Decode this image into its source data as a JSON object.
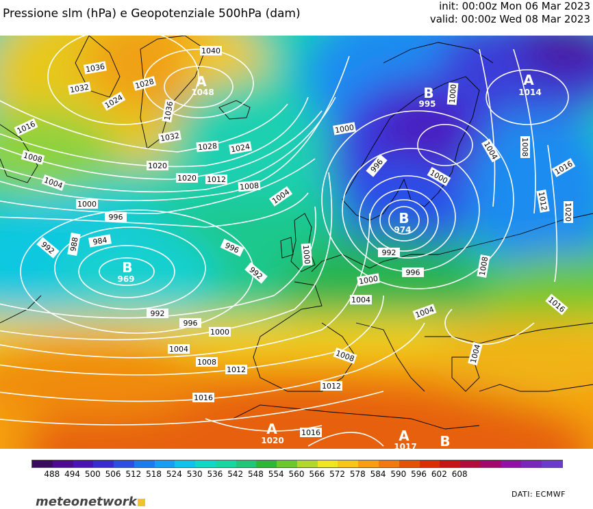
{
  "header": {
    "title": "Pressione slm (hPa) e Geopotenziale 500hPa (dam)",
    "init": "init: 00:00z Mon 06 Mar 2023",
    "valid": "valid: 00:00z Wed 08 Mar 2023"
  },
  "map": {
    "isobar_labels": [
      "1040",
      "1036",
      "1032",
      "1028",
      "1024",
      "1016",
      "1008",
      "1004",
      "1000",
      "996",
      "992",
      "988",
      "984",
      "1020",
      "1012",
      "1036",
      "1032",
      "1028",
      "1024",
      "1020",
      "1016",
      "1012",
      "1008",
      "1004",
      "1000",
      "996",
      "992",
      "1000",
      "996",
      "1000",
      "1004",
      "1008",
      "1012",
      "1016",
      "1000",
      "996",
      "992",
      "1000",
      "1004",
      "1008",
      "1004",
      "1008",
      "1012",
      "1016",
      "1020",
      "1016",
      "1004",
      "1008",
      "1000",
      "996",
      "1000",
      "1004",
      "1008",
      "1012",
      "1016"
    ],
    "pressure_centers": [
      {
        "type": "A",
        "value": "1048"
      },
      {
        "type": "B",
        "value": "995"
      },
      {
        "type": "A",
        "value": "1014"
      },
      {
        "type": "B",
        "value": "974"
      },
      {
        "type": "B",
        "value": "969"
      },
      {
        "type": "A",
        "value": "1020"
      },
      {
        "type": "A",
        "value": "1017"
      },
      {
        "type": "B",
        "value": ""
      }
    ]
  },
  "legend": {
    "colors": [
      "#3a0a5c",
      "#4b0c8c",
      "#4a14b4",
      "#3a2ad2",
      "#2c4ee6",
      "#1e78f0",
      "#14a0f0",
      "#0ec4e6",
      "#0ed8c8",
      "#14d8a0",
      "#1ec878",
      "#32b43c",
      "#6cc82e",
      "#b4d828",
      "#f0e61e",
      "#f5c814",
      "#f5a00e",
      "#f07a0a",
      "#e65008",
      "#dc2c0a",
      "#c81414",
      "#b40a3c",
      "#a00a6e",
      "#8c14a0",
      "#7828b4",
      "#6a3cc8"
    ],
    "ticks": [
      "488",
      "494",
      "500",
      "506",
      "512",
      "518",
      "524",
      "530",
      "536",
      "542",
      "548",
      "554",
      "560",
      "566",
      "572",
      "578",
      "584",
      "590",
      "596",
      "602",
      "608"
    ]
  },
  "footer": {
    "logo": "meteonetwork",
    "source": "DATI:  ECMWF"
  }
}
